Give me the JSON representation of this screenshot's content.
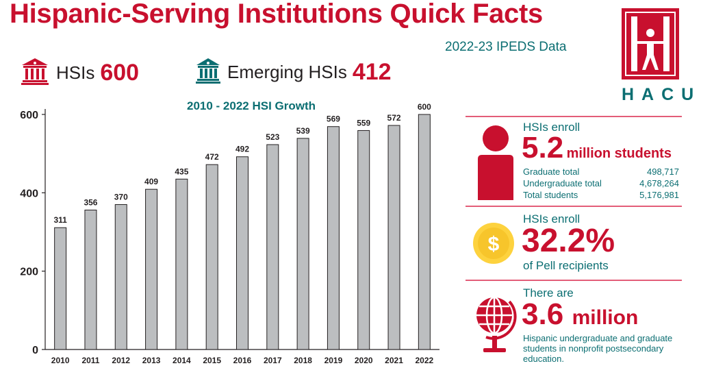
{
  "header": {
    "title": "Hispanic-Serving Institutions Quick Facts",
    "subtitle": "2022-23 IPEDS Data"
  },
  "logo": {
    "text": "HACU",
    "letter": "H"
  },
  "stats": {
    "hsis_label": "HSIs",
    "hsis_value": "600",
    "emerging_label": "Emerging HSIs",
    "emerging_value": "412"
  },
  "chart_data": {
    "type": "bar",
    "title": "2010 - 2022 HSI Growth",
    "categories": [
      "2010",
      "2011",
      "2012",
      "2013",
      "2014",
      "2015",
      "2016",
      "2017",
      "2018",
      "2019",
      "2020",
      "2021",
      "2022"
    ],
    "values": [
      311,
      356,
      370,
      409,
      435,
      472,
      492,
      523,
      539,
      569,
      559,
      572,
      600
    ],
    "ylim": [
      0,
      600
    ],
    "yticks": [
      "0",
      "200",
      "400",
      "600"
    ],
    "xlabel": "",
    "ylabel": "",
    "grid": false,
    "bar_color": "#bcbec0"
  },
  "enroll": {
    "intro": "HSIs enroll",
    "value": "5.2",
    "unit": "million students",
    "rows": [
      {
        "label": "Graduate total",
        "value": "498,717"
      },
      {
        "label": "Undergraduate total",
        "value": "4,678,264"
      },
      {
        "label": "Total students",
        "value": "5,176,981"
      }
    ]
  },
  "pell": {
    "intro": "HSIs enroll",
    "value": "32.2%",
    "text": "of Pell recipients",
    "coin_symbol": "$"
  },
  "hispanic": {
    "intro": "There are",
    "value": "3.6",
    "unit": "million",
    "text": "Hispanic undergraduate and graduate students in nonprofit postsecondary education."
  },
  "colors": {
    "brand_red": "#c8102e",
    "teal": "#0b6e72",
    "coin_yellow": "#fdd23e",
    "divider_pink": "#e35d78"
  },
  "icons": [
    "institution-red-icon",
    "institution-teal-icon",
    "person-icon",
    "dollar-coin-icon",
    "globe-icon",
    "hacu-logo"
  ]
}
